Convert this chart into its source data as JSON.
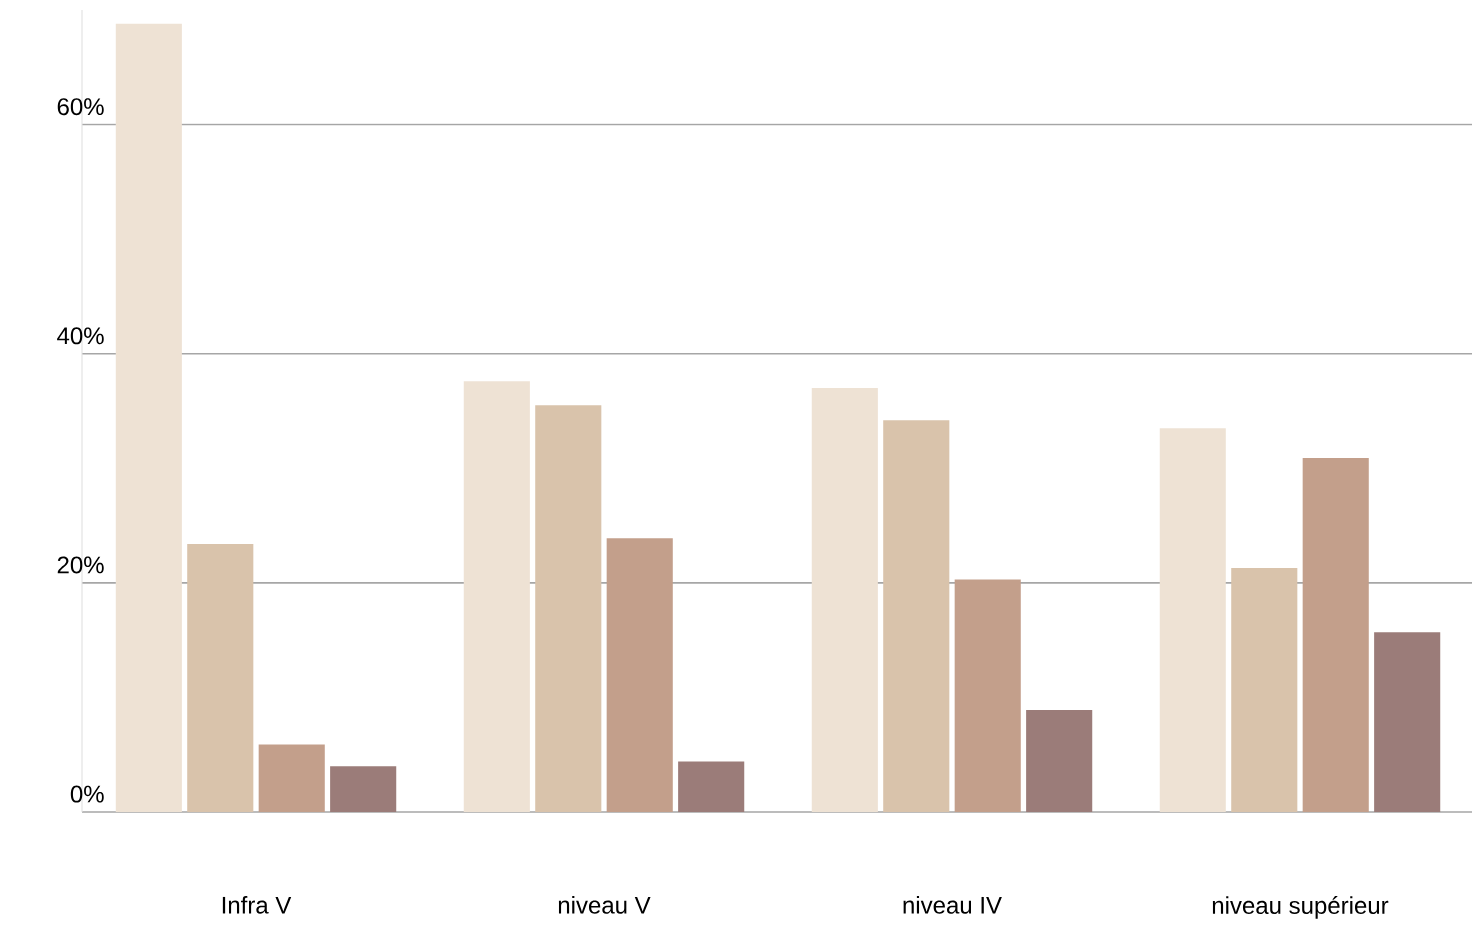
{
  "chart_data": {
    "type": "bar",
    "categories": [
      "Infra V",
      "niveau V",
      "niveau IV",
      "niveau supérieur"
    ],
    "series": [
      {
        "color": "#eee2d4",
        "values": [
          68.8,
          37.6,
          37.0,
          33.5
        ]
      },
      {
        "color": "#d9c3ab",
        "values": [
          23.4,
          35.5,
          34.2,
          21.3
        ]
      },
      {
        "color": "#c39f8b",
        "values": [
          5.9,
          23.9,
          20.3,
          30.9
        ]
      },
      {
        "color": "#9b7c79",
        "values": [
          4.0,
          4.4,
          8.9,
          15.7
        ]
      }
    ],
    "yticks": [
      {
        "value": 0,
        "label": "0%"
      },
      {
        "value": 20,
        "label": "20%"
      },
      {
        "value": 40,
        "label": "40%"
      },
      {
        "value": 60,
        "label": "60%"
      }
    ],
    "ylim": [
      0,
      70
    ],
    "grid": "y"
  }
}
